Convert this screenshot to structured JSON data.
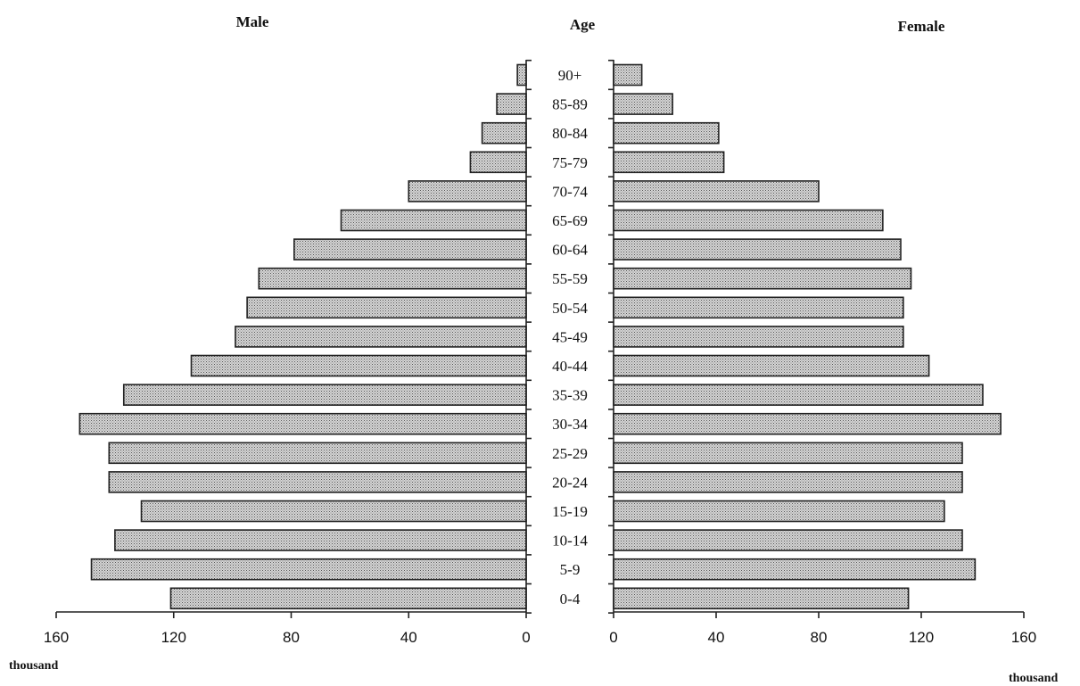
{
  "chart_data": {
    "type": "bar",
    "orientation": "horizontal",
    "layout": "population pyramid",
    "titles": {
      "left": "Male",
      "center": "Age",
      "right": "Female"
    },
    "categories": [
      "90+",
      "85-89",
      "80-84",
      "75-79",
      "70-74",
      "65-69",
      "60-64",
      "55-59",
      "50-54",
      "45-49",
      "40-44",
      "35-39",
      "30-34",
      "25-29",
      "20-24",
      "15-19",
      "10-14",
      "5-9",
      "0-4"
    ],
    "series": [
      {
        "name": "Male",
        "values": [
          3,
          10,
          15,
          19,
          40,
          63,
          79,
          91,
          95,
          99,
          114,
          137,
          152,
          142,
          142,
          131,
          140,
          148,
          121
        ]
      },
      {
        "name": "Female",
        "values": [
          11,
          23,
          41,
          43,
          80,
          105,
          112,
          116,
          113,
          113,
          123,
          144,
          151,
          136,
          136,
          129,
          136,
          141,
          115
        ]
      }
    ],
    "xlim": [
      0,
      160
    ],
    "xticks": [
      "160",
      "120",
      "80",
      "40",
      "0"
    ],
    "xticks_right": [
      "0",
      "40",
      "80",
      "120",
      "160"
    ],
    "unit_label_left": "thousand",
    "unit_label_right": "thousand",
    "bar_fill": "#bdbdbd",
    "bar_stroke": "#222222"
  }
}
